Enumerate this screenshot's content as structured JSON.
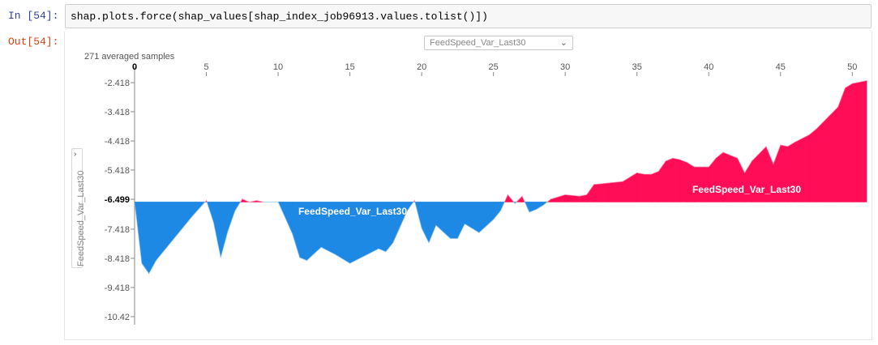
{
  "notebook": {
    "in_prompt": "In [54]:",
    "code": "shap.plots.force(shap_values[shap_index_job96913.values.tolist()])",
    "out_prompt": "Out[54]:"
  },
  "plot": {
    "top_select_value": "FeedSpeed_Var_Last30",
    "ylabel_select_value": "FeedSpeed_Var_Last30",
    "samples_label": "271 averaged samples",
    "base_value_label": "-6.499",
    "blue_region_label": "FeedSpeed_Var_Last30",
    "red_region_label": "FeedSpeed_Var_Last30",
    "colors": {
      "positive": "#ff0d57",
      "negative": "#1e88e5",
      "axis": "#888888"
    }
  },
  "chart_data": {
    "type": "area",
    "title": "",
    "xlabel": "",
    "ylabel": "FeedSpeed_Var_Last30",
    "x_ticks": [
      "0",
      "5",
      "10",
      "15",
      "20",
      "25",
      "30",
      "35",
      "40",
      "45",
      "50"
    ],
    "y_ticks": [
      "-2.418",
      "-3.418",
      "-4.418",
      "-5.418",
      "-6.499",
      "-7.418",
      "-8.418",
      "-9.418",
      "-10.42"
    ],
    "xlim": [
      0,
      51
    ],
    "ylim": [
      -10.42,
      -1.8
    ],
    "base_value": -6.499,
    "series": [
      {
        "name": "FeedSpeed_Var_Last30",
        "x": [
          0,
          0.5,
          1,
          1.5,
          2,
          3,
          4,
          5,
          5.5,
          6,
          6.5,
          7,
          7.5,
          8,
          8.5,
          9,
          9.5,
          10,
          11,
          11.5,
          12,
          13,
          14,
          15,
          16,
          17,
          17.5,
          18,
          19,
          19.5,
          20,
          20.5,
          21,
          22,
          22.5,
          23,
          24,
          25,
          25.5,
          26,
          26.5,
          27,
          27.5,
          28,
          28.5,
          29,
          30,
          31,
          31.5,
          32,
          33,
          34,
          35,
          35.5,
          36,
          36.5,
          37,
          37.5,
          38,
          38.5,
          39,
          40,
          40.5,
          41,
          42,
          42.5,
          43,
          44,
          44.5,
          45,
          45.5,
          46,
          47,
          47.5,
          48,
          49,
          49.5,
          50,
          50.5,
          51
        ],
        "y": [
          -6.499,
          -8.6,
          -8.95,
          -8.5,
          -8.2,
          -7.6,
          -7.0,
          -6.45,
          -7.2,
          -8.4,
          -7.5,
          -6.8,
          -6.4,
          -6.5,
          -6.45,
          -6.5,
          -6.5,
          -6.5,
          -7.6,
          -8.4,
          -8.5,
          -8.05,
          -8.3,
          -8.6,
          -8.35,
          -8.1,
          -8.2,
          -7.9,
          -6.8,
          -6.45,
          -7.4,
          -7.9,
          -7.3,
          -7.75,
          -7.75,
          -7.25,
          -7.55,
          -7.1,
          -6.8,
          -6.25,
          -6.55,
          -6.3,
          -6.85,
          -6.75,
          -6.6,
          -6.4,
          -6.25,
          -6.3,
          -6.25,
          -5.9,
          -5.85,
          -5.8,
          -5.5,
          -5.55,
          -5.55,
          -5.45,
          -5.1,
          -5.0,
          -5.05,
          -5.15,
          -5.3,
          -5.3,
          -5.0,
          -4.8,
          -5.0,
          -5.5,
          -5.1,
          -4.6,
          -5.2,
          -4.55,
          -4.6,
          -4.45,
          -4.2,
          -4.0,
          -3.75,
          -3.25,
          -2.6,
          -2.45,
          -2.4,
          -2.35
        ]
      }
    ]
  }
}
